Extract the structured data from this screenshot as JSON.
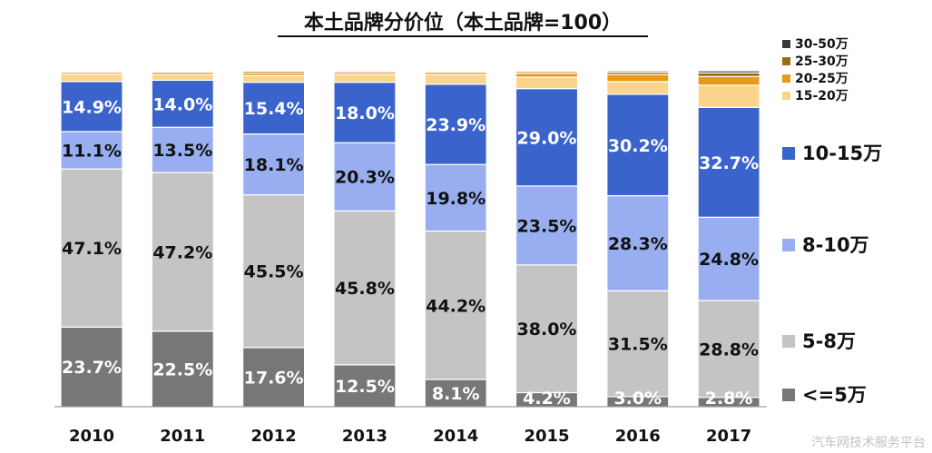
{
  "chart_data": {
    "type": "bar",
    "stacked": true,
    "title": "本土品牌分价位（本土品牌=100）",
    "categories": [
      "2010",
      "2011",
      "2012",
      "2013",
      "2014",
      "2015",
      "2016",
      "2017"
    ],
    "series": [
      {
        "name": "<=5万",
        "color": "#777777",
        "label_color": "#ffffff",
        "values": [
          23.7,
          22.5,
          17.6,
          12.5,
          8.1,
          4.2,
          3.0,
          2.8
        ],
        "labels": [
          "23.7%",
          "22.5%",
          "17.6%",
          "12.5%",
          "8.1%",
          "4.2%",
          "3.0%",
          "2.8%"
        ]
      },
      {
        "name": "5-8万",
        "color": "#c4c4c4",
        "label_color": "#111111",
        "values": [
          47.1,
          47.2,
          45.5,
          45.8,
          44.2,
          38.0,
          31.5,
          28.8
        ],
        "labels": [
          "47.1%",
          "47.2%",
          "45.5%",
          "45.8%",
          "44.2%",
          "38.0%",
          "31.5%",
          "28.8%"
        ]
      },
      {
        "name": "8-10万",
        "color": "#98aef0",
        "label_color": "#111111",
        "values": [
          11.1,
          13.5,
          18.1,
          20.3,
          19.8,
          23.5,
          28.3,
          24.8
        ],
        "labels": [
          "11.1%",
          "13.5%",
          "18.1%",
          "20.3%",
          "19.8%",
          "23.5%",
          "28.3%",
          "24.8%"
        ]
      },
      {
        "name": "10-15万",
        "color": "#3a64cc",
        "label_color": "#ffffff",
        "values": [
          14.9,
          14.0,
          15.4,
          18.0,
          23.9,
          29.0,
          30.2,
          32.7
        ],
        "labels": [
          "14.9%",
          "14.0%",
          "15.4%",
          "18.0%",
          "23.9%",
          "29.0%",
          "30.2%",
          "32.7%"
        ]
      },
      {
        "name": "15-20万",
        "color": "#fad48a",
        "label_color": "#111111",
        "values": [
          2.2,
          1.7,
          2.0,
          2.3,
          2.9,
          3.4,
          3.8,
          6.6
        ]
      },
      {
        "name": "20-25万",
        "color": "#e69a1a",
        "label_color": "#111111",
        "values": [
          0.6,
          0.7,
          0.8,
          0.6,
          0.7,
          1.2,
          2.1,
          2.6
        ]
      },
      {
        "name": "25-30万",
        "color": "#9c6a12",
        "label_color": "#ffffff",
        "values": [
          0.3,
          0.3,
          0.5,
          0.4,
          0.3,
          0.5,
          0.7,
          1.1
        ]
      },
      {
        "name": "30-50万",
        "color": "#3a3a3a",
        "label_color": "#ffffff",
        "values": [
          0.1,
          0.1,
          0.1,
          0.1,
          0.1,
          0.2,
          0.4,
          0.6
        ]
      }
    ],
    "ylim": [
      0,
      100
    ],
    "xlabel": "",
    "ylabel": "",
    "grid": false,
    "legend": {
      "position": "right",
      "top_group": [
        "30-50万",
        "25-30万",
        "20-25万",
        "15-20万"
      ],
      "bottom_group": [
        "10-15万",
        "8-10万",
        "5-8万",
        "<=5万"
      ]
    }
  },
  "watermark": "汽车网技术服务平台"
}
